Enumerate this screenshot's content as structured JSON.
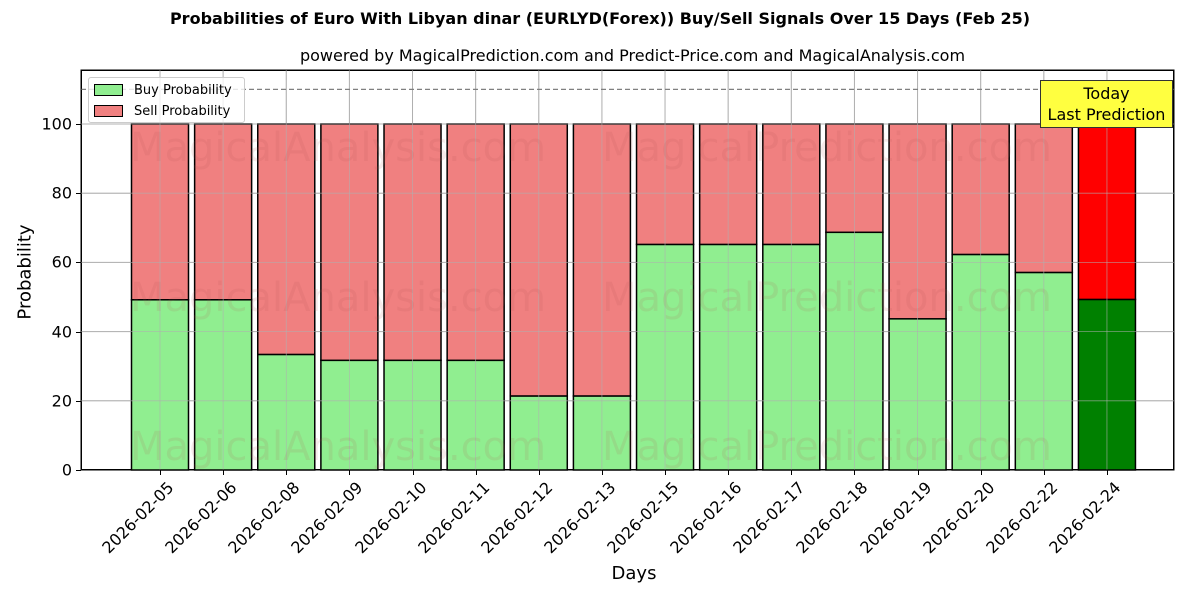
{
  "chart_data": {
    "type": "bar",
    "stacked": true,
    "title": "Probabilities of Euro With Libyan dinar (EURLYD(Forex)) Buy/Sell Signals Over 15 Days (Feb 25)",
    "subtitle": "powered by MagicalPrediction.com and Predict-Price.com and MagicalAnalysis.com",
    "xlabel": "Days",
    "ylabel": "Probability",
    "ylim": [
      0,
      115
    ],
    "yticks": [
      0,
      20,
      40,
      60,
      80,
      100
    ],
    "grid": true,
    "reference_line": {
      "y": 110,
      "style": "dashed",
      "color": "#808080"
    },
    "categories": [
      "2026-02-05",
      "2026-02-06",
      "2026-02-08",
      "2026-02-09",
      "2026-02-10",
      "2026-02-11",
      "2026-02-12",
      "2026-02-13",
      "2026-02-15",
      "2026-02-16",
      "2026-02-17",
      "2026-02-18",
      "2026-02-19",
      "2026-02-20",
      "2026-02-22",
      "2026-02-24"
    ],
    "series": [
      {
        "name": "Buy Probability",
        "color": "#90ee90",
        "highlight_color": "#008000",
        "values": [
          49.2,
          49.2,
          33.4,
          31.7,
          31.7,
          31.7,
          21.4,
          21.4,
          65.2,
          65.2,
          65.2,
          68.7,
          43.7,
          62.3,
          57.1,
          49.3
        ]
      },
      {
        "name": "Sell Probability",
        "color": "#f08080",
        "highlight_color": "#ff0000",
        "values": [
          50.8,
          50.8,
          66.6,
          68.3,
          68.3,
          68.3,
          78.6,
          78.6,
          34.8,
          34.8,
          34.8,
          31.3,
          56.3,
          37.7,
          42.9,
          50.7
        ]
      }
    ],
    "highlight_index": 15,
    "legend": {
      "position": "upper left",
      "entries": [
        "Buy Probability",
        "Sell Probability"
      ]
    },
    "annotation": {
      "line1": "Today",
      "line2": "Last Prediction",
      "background": "#ffff40"
    }
  },
  "watermarks": [
    "MagicalAnalysis.com",
    "MagicalPrediction.com"
  ]
}
